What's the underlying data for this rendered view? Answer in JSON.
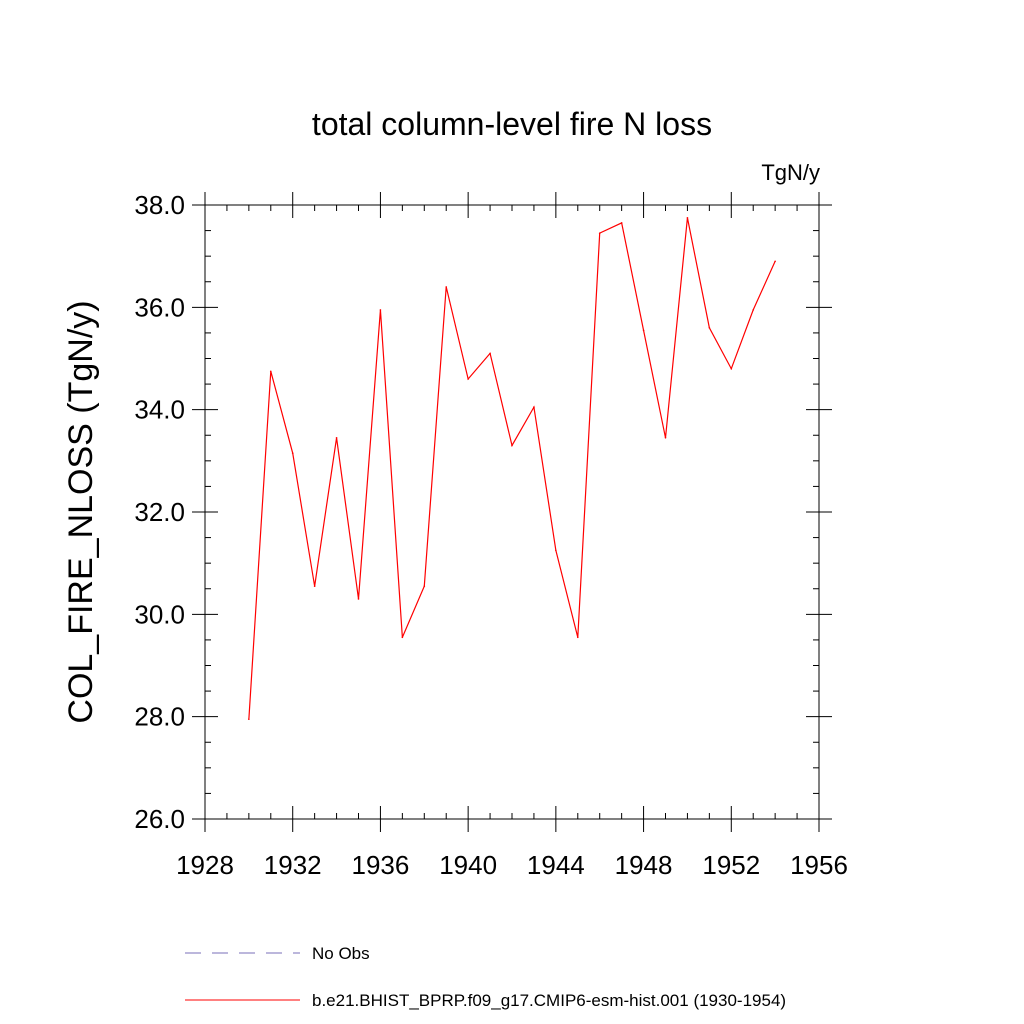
{
  "chart_data": {
    "type": "line",
    "title": "total column-level fire N loss",
    "units_label": "TgN/y",
    "ylabel": "COL_FIRE_NLOSS  (TgN/y)",
    "xlabel": "",
    "xlim": [
      1928,
      1956
    ],
    "ylim": [
      26.0,
      38.0
    ],
    "x_ticks": [
      1928,
      1932,
      1936,
      1940,
      1944,
      1948,
      1952,
      1956
    ],
    "x_tick_labels": [
      "1928",
      "1932",
      "1936",
      "1940",
      "1944",
      "1948",
      "1952",
      "1956"
    ],
    "y_ticks": [
      26.0,
      28.0,
      30.0,
      32.0,
      34.0,
      36.0,
      38.0
    ],
    "y_tick_labels": [
      "26.0",
      "28.0",
      "30.0",
      "32.0",
      "34.0",
      "36.0",
      "38.0"
    ],
    "x_minor_step": 1,
    "y_minor_step": 0.5,
    "grid": false,
    "legend_position": "bottom",
    "series": [
      {
        "name": "b.e21.BHIST_BPRP.f09_g17.CMIP6-esm-hist.001 (1930-1954)",
        "color": "#ff0000",
        "style": "solid",
        "x": [
          1930,
          1931,
          1932,
          1933,
          1934,
          1935,
          1936,
          1937,
          1938,
          1939,
          1940,
          1941,
          1942,
          1943,
          1944,
          1945,
          1946,
          1947,
          1948,
          1949,
          1950,
          1951,
          1952,
          1953,
          1954
        ],
        "values": [
          27.95,
          34.75,
          33.15,
          30.55,
          33.45,
          30.3,
          35.95,
          29.55,
          30.55,
          36.4,
          34.6,
          35.1,
          33.3,
          34.05,
          31.25,
          29.55,
          37.45,
          37.65,
          35.55,
          33.45,
          37.75,
          35.6,
          34.8,
          35.95,
          36.9
        ]
      }
    ],
    "legend": [
      {
        "label": "No Obs",
        "color": "#7a6fb8",
        "style": "dashed"
      },
      {
        "label": "b.e21.BHIST_BPRP.f09_g17.CMIP6-esm-hist.001 (1930-1954)",
        "color": "#ff0000",
        "style": "solid"
      }
    ]
  }
}
